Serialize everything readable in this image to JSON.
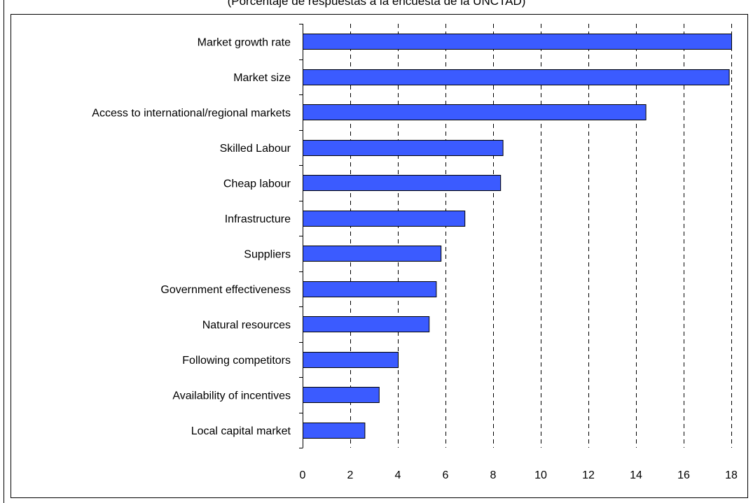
{
  "chart_data": {
    "type": "bar",
    "orientation": "horizontal",
    "subtitle": "(Porcentaje de respuestas a la encuesta de la UNCTAD)",
    "categories": [
      "Market growth rate",
      "Market size",
      "Access to international/regional markets",
      "Skilled Labour",
      "Cheap labour",
      "Infrastructure",
      "Suppliers",
      "Government effectiveness",
      "Natural resources",
      "Following competitors",
      "Availability of incentives",
      "Local capital market"
    ],
    "values": [
      18.0,
      17.9,
      14.4,
      8.4,
      8.3,
      6.8,
      5.8,
      5.6,
      5.3,
      4.0,
      3.2,
      2.6
    ],
    "xlim": [
      0,
      18
    ],
    "xticks": [
      0,
      2,
      4,
      6,
      8,
      10,
      12,
      14,
      16,
      18
    ],
    "grid": "vertical-dashed",
    "bar_color": "#3b5bff",
    "bar_edge_color": "#000000",
    "xlabel": "",
    "ylabel": ""
  }
}
